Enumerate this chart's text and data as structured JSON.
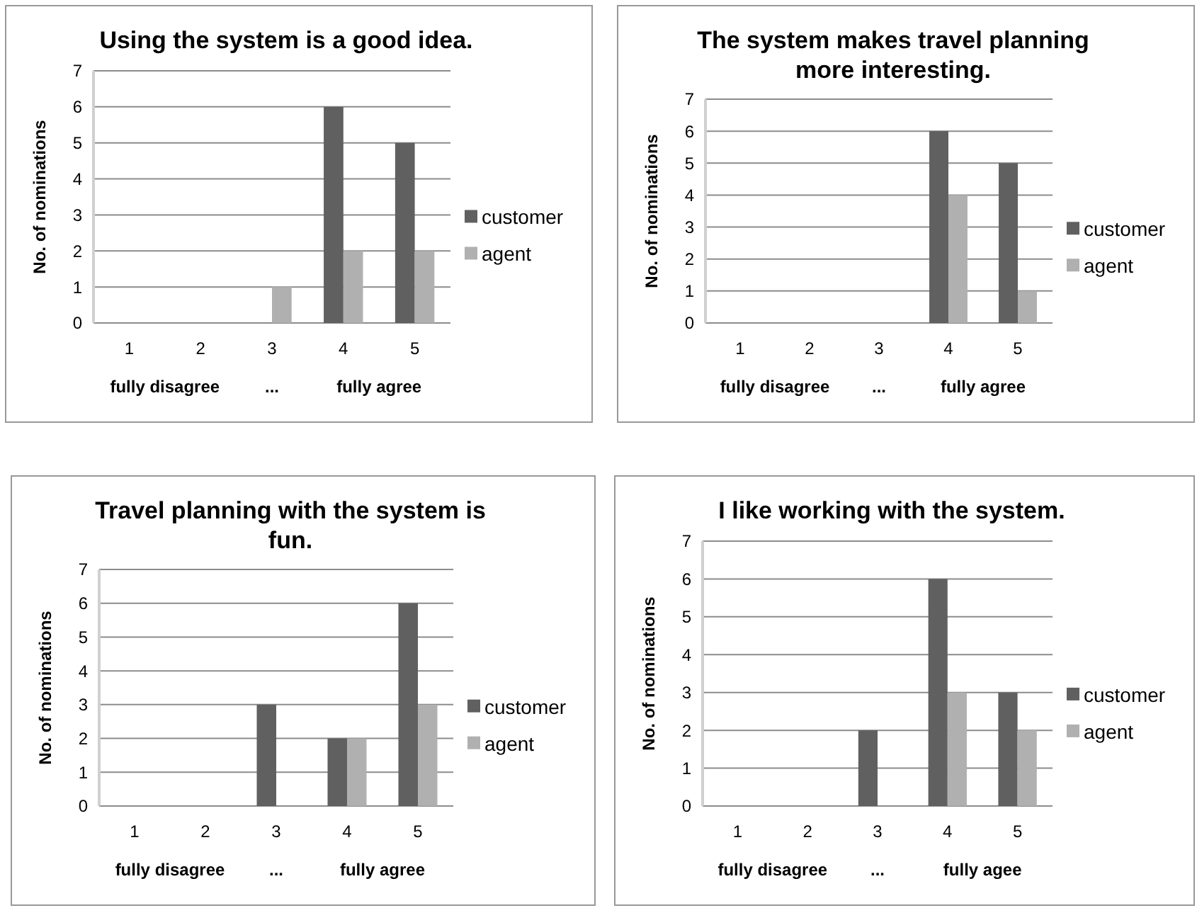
{
  "chart_data": [
    {
      "type": "bar",
      "title": "Using the system is a good idea.",
      "ylabel": "No. of nominations",
      "categories": [
        "1",
        "2",
        "3",
        "4",
        "5"
      ],
      "series": [
        {
          "name": "customer",
          "color": "#606060",
          "values": [
            0,
            0,
            0,
            6,
            5
          ]
        },
        {
          "name": "agent",
          "color": "#b0b0b0",
          "values": [
            0,
            0,
            1,
            2,
            2
          ]
        }
      ],
      "ylim": [
        0,
        7
      ],
      "yticks": [
        0,
        1,
        2,
        3,
        4,
        5,
        6,
        7
      ],
      "grid": "y",
      "legend": "right",
      "annotations": [
        "fully disagree",
        "...",
        "fully agree"
      ]
    },
    {
      "type": "bar",
      "title": "The system makes travel planning more interesting.",
      "ylabel": "No. of nominations",
      "categories": [
        "1",
        "2",
        "3",
        "4",
        "5"
      ],
      "series": [
        {
          "name": "customer",
          "color": "#606060",
          "values": [
            0,
            0,
            0,
            6,
            5
          ]
        },
        {
          "name": "agent",
          "color": "#b0b0b0",
          "values": [
            0,
            0,
            0,
            4,
            1
          ]
        }
      ],
      "ylim": [
        0,
        7
      ],
      "yticks": [
        0,
        1,
        2,
        3,
        4,
        5,
        6,
        7
      ],
      "grid": "y",
      "legend": "right",
      "annotations": [
        "fully disagree",
        "...",
        "fully agree"
      ]
    },
    {
      "type": "bar",
      "title": "Travel planning with the system is fun.",
      "ylabel": "No. of nominations",
      "categories": [
        "1",
        "2",
        "3",
        "4",
        "5"
      ],
      "series": [
        {
          "name": "customer",
          "color": "#606060",
          "values": [
            0,
            0,
            3,
            2,
            6
          ]
        },
        {
          "name": "agent",
          "color": "#b0b0b0",
          "values": [
            0,
            0,
            0,
            2,
            3
          ]
        }
      ],
      "ylim": [
        0,
        7
      ],
      "yticks": [
        0,
        1,
        2,
        3,
        4,
        5,
        6,
        7
      ],
      "grid": "y",
      "legend": "right",
      "annotations": [
        "fully disagree",
        "...",
        "fully agree"
      ]
    },
    {
      "type": "bar",
      "title": "I like working with the system.",
      "ylabel": "No. of nominations",
      "categories": [
        "1",
        "2",
        "3",
        "4",
        "5"
      ],
      "series": [
        {
          "name": "customer",
          "color": "#606060",
          "values": [
            0,
            0,
            2,
            6,
            3
          ]
        },
        {
          "name": "agent",
          "color": "#b0b0b0",
          "values": [
            0,
            0,
            0,
            3,
            2
          ]
        }
      ],
      "ylim": [
        0,
        7
      ],
      "yticks": [
        0,
        1,
        2,
        3,
        4,
        5,
        6,
        7
      ],
      "grid": "y",
      "legend": "right",
      "annotations": [
        "fully disagree",
        "...",
        "fully agee"
      ]
    }
  ]
}
